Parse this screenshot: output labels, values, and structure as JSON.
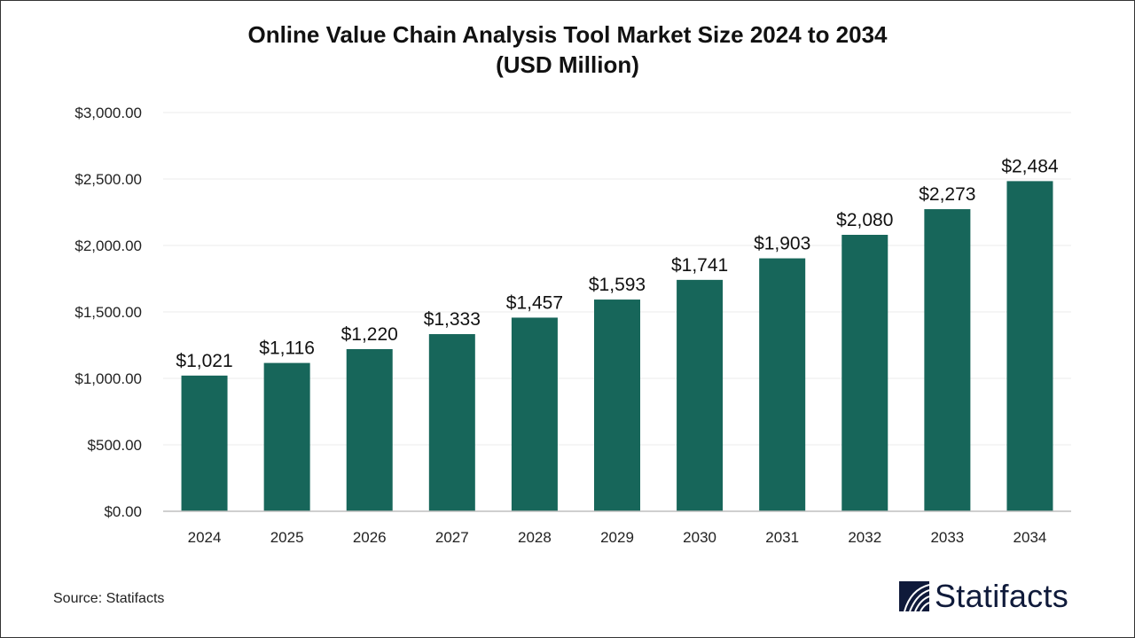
{
  "title_line1": "Online Value Chain Analysis Tool Market Size 2024 to 2034",
  "title_line2": "(USD Million)",
  "source": "Source: Statifacts",
  "logo_text": "Statifacts",
  "colors": {
    "bar": "#17665A",
    "grid": "#ebebeb",
    "axis": "#bfbfbf",
    "logo": "#0f1a3a"
  },
  "chart_data": {
    "type": "bar",
    "title": "Online Value Chain Analysis Tool Market Size 2024 to 2034 (USD Million)",
    "xlabel": "",
    "ylabel": "",
    "categories": [
      "2024",
      "2025",
      "2026",
      "2027",
      "2028",
      "2029",
      "2030",
      "2031",
      "2032",
      "2033",
      "2034"
    ],
    "values": [
      1021,
      1116,
      1220,
      1333,
      1457,
      1593,
      1741,
      1903,
      2080,
      2273,
      2484
    ],
    "data_labels": [
      "$1,021",
      "$1,116",
      "$1,220",
      "$1,333",
      "$1,457",
      "$1,593",
      "$1,741",
      "$1,903",
      "$2,080",
      "$2,273",
      "$2,484"
    ],
    "ylim": [
      0,
      3000
    ],
    "yticks": [
      0,
      500,
      1000,
      1500,
      2000,
      2500,
      3000
    ],
    "ytick_labels": [
      "$0.00",
      "$500.00",
      "$1,000.00",
      "$1,500.00",
      "$2,000.00",
      "$2,500.00",
      "$3,000.00"
    ],
    "grid": true,
    "legend": "none"
  }
}
